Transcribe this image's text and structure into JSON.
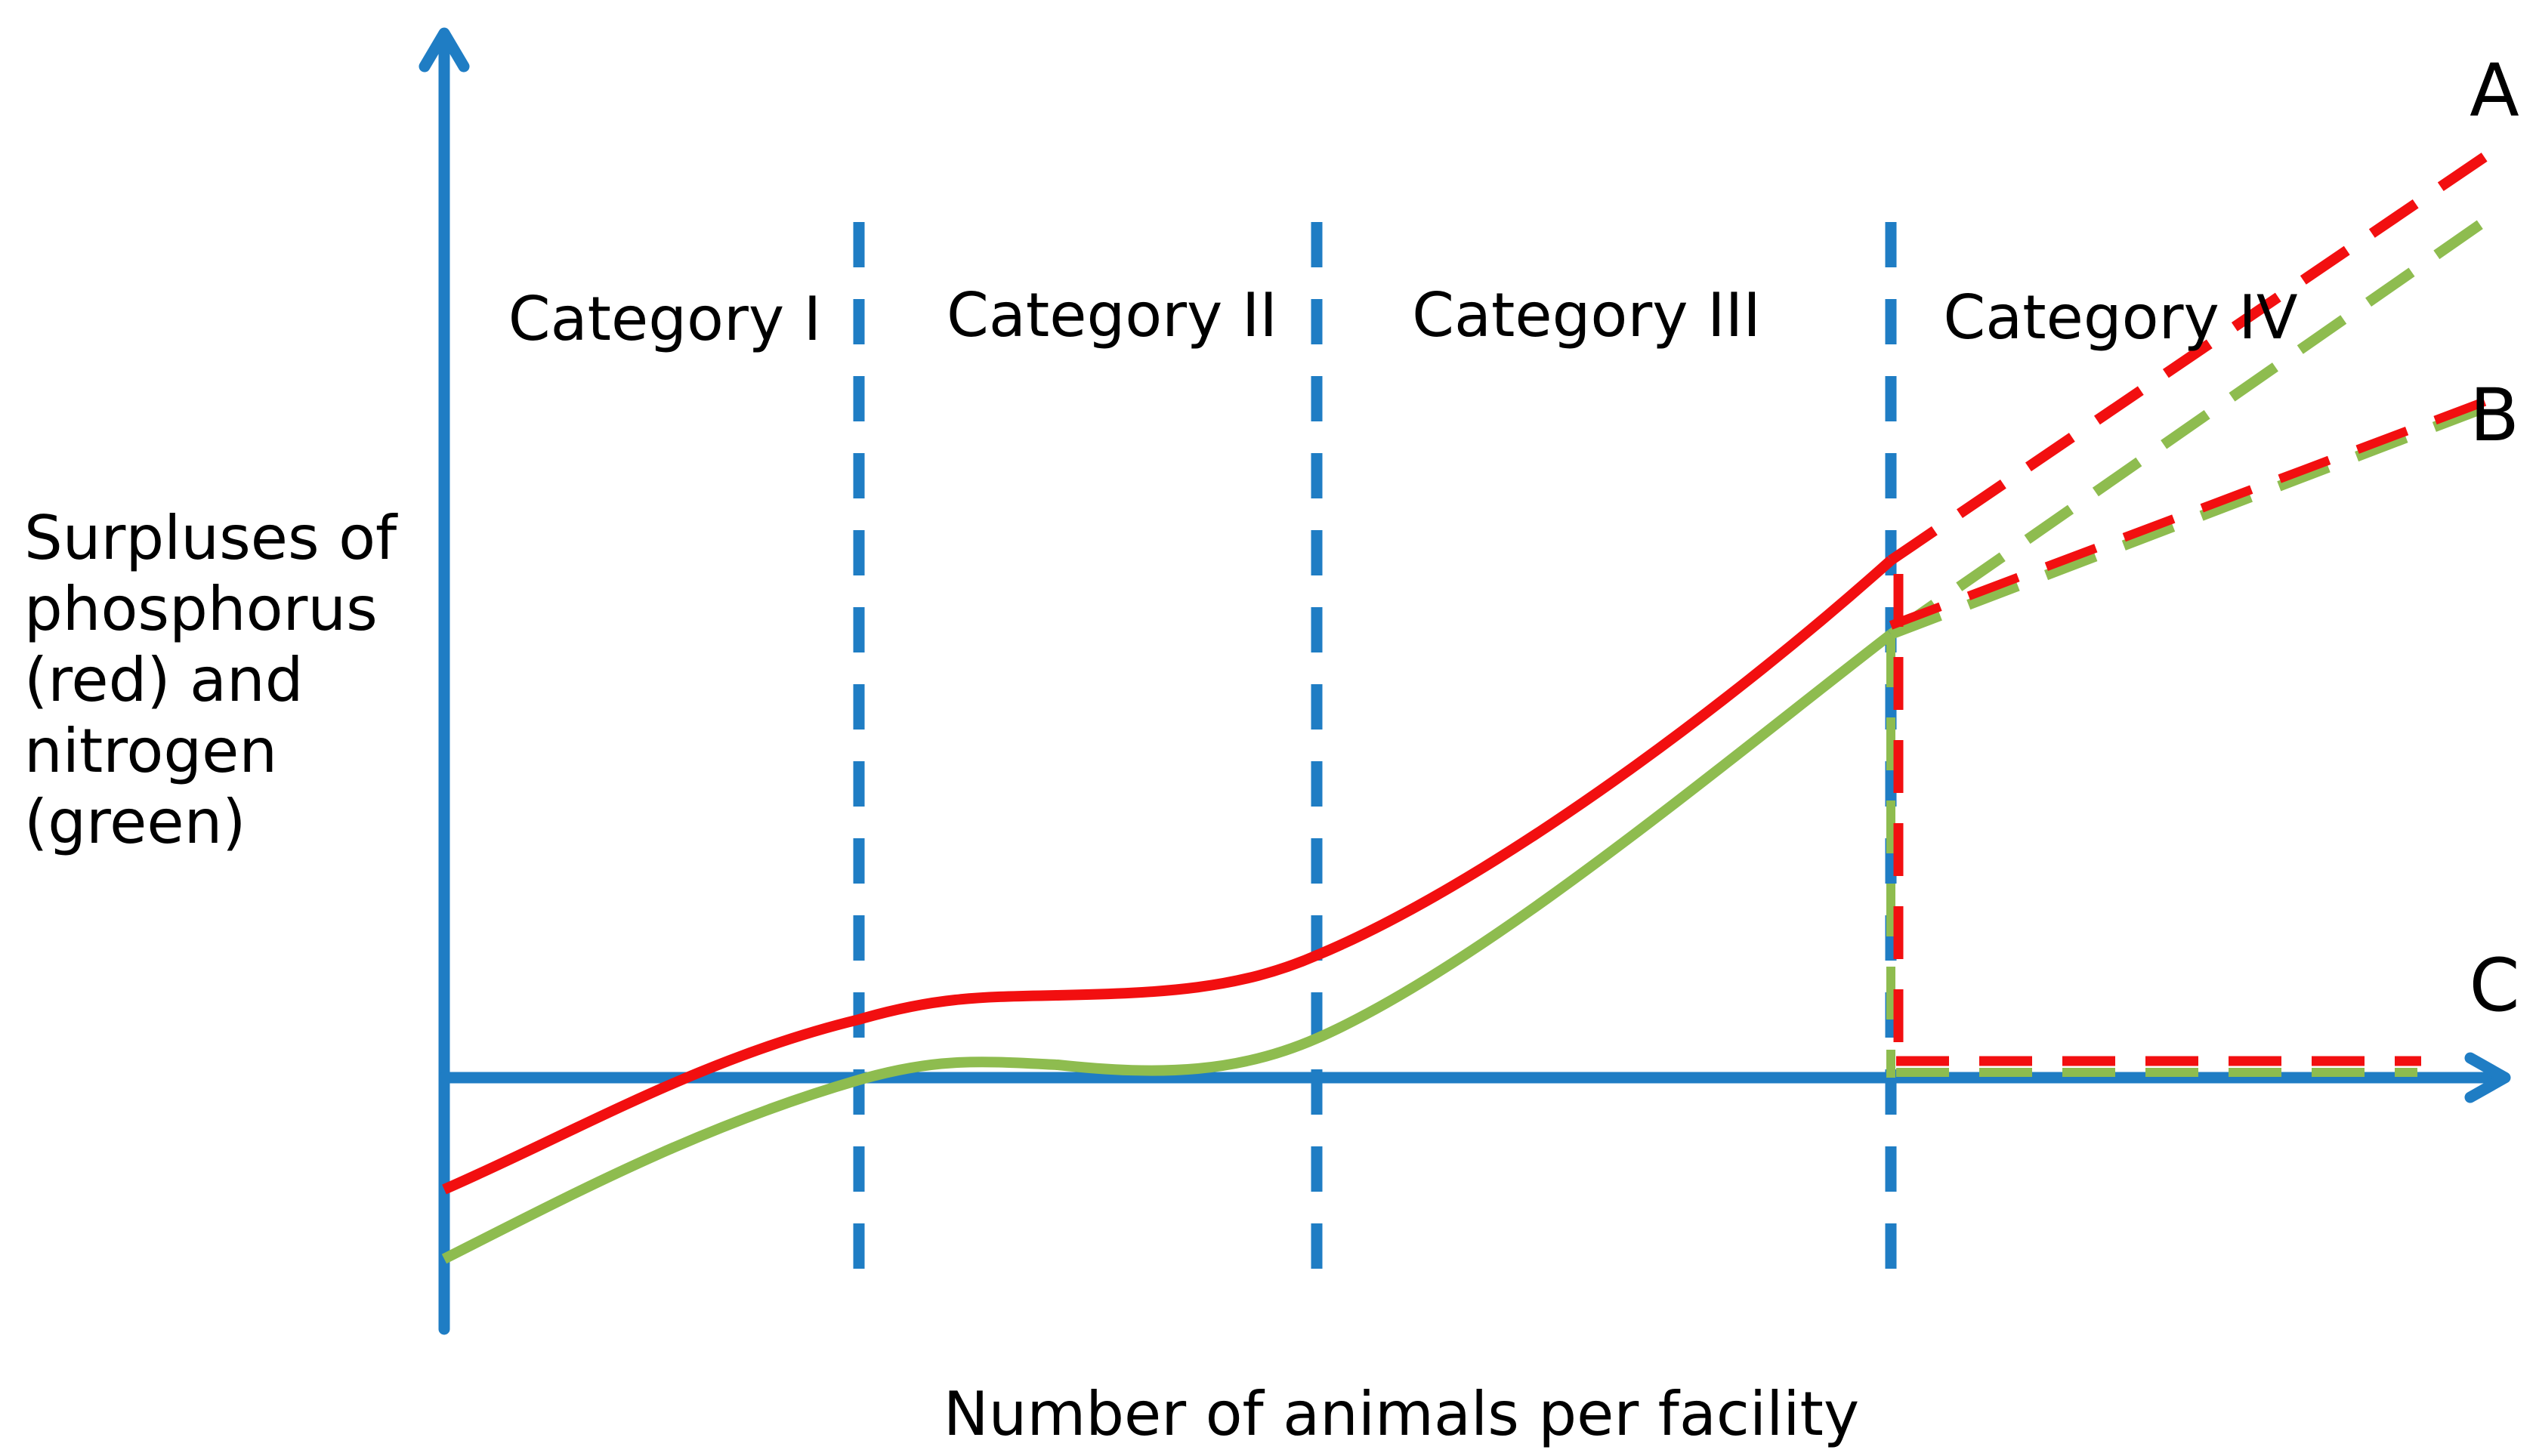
{
  "title": "",
  "y_axis_label_lines": [
    "Surpluses of",
    "phosphorus",
    "(red) and",
    "nitrogen",
    "(green)"
  ],
  "x_axis_label": "Number of animals per facility",
  "categories": [
    "Category I",
    "Category II",
    "Category III",
    "Category IV"
  ],
  "scenario_labels": {
    "a": "A",
    "b": "B",
    "c": "C"
  },
  "colors": {
    "axis": "#1f7dc4",
    "phosphorus": "#f20f10",
    "nitrogen": "#8ebc4f",
    "text": "#000000"
  }
}
